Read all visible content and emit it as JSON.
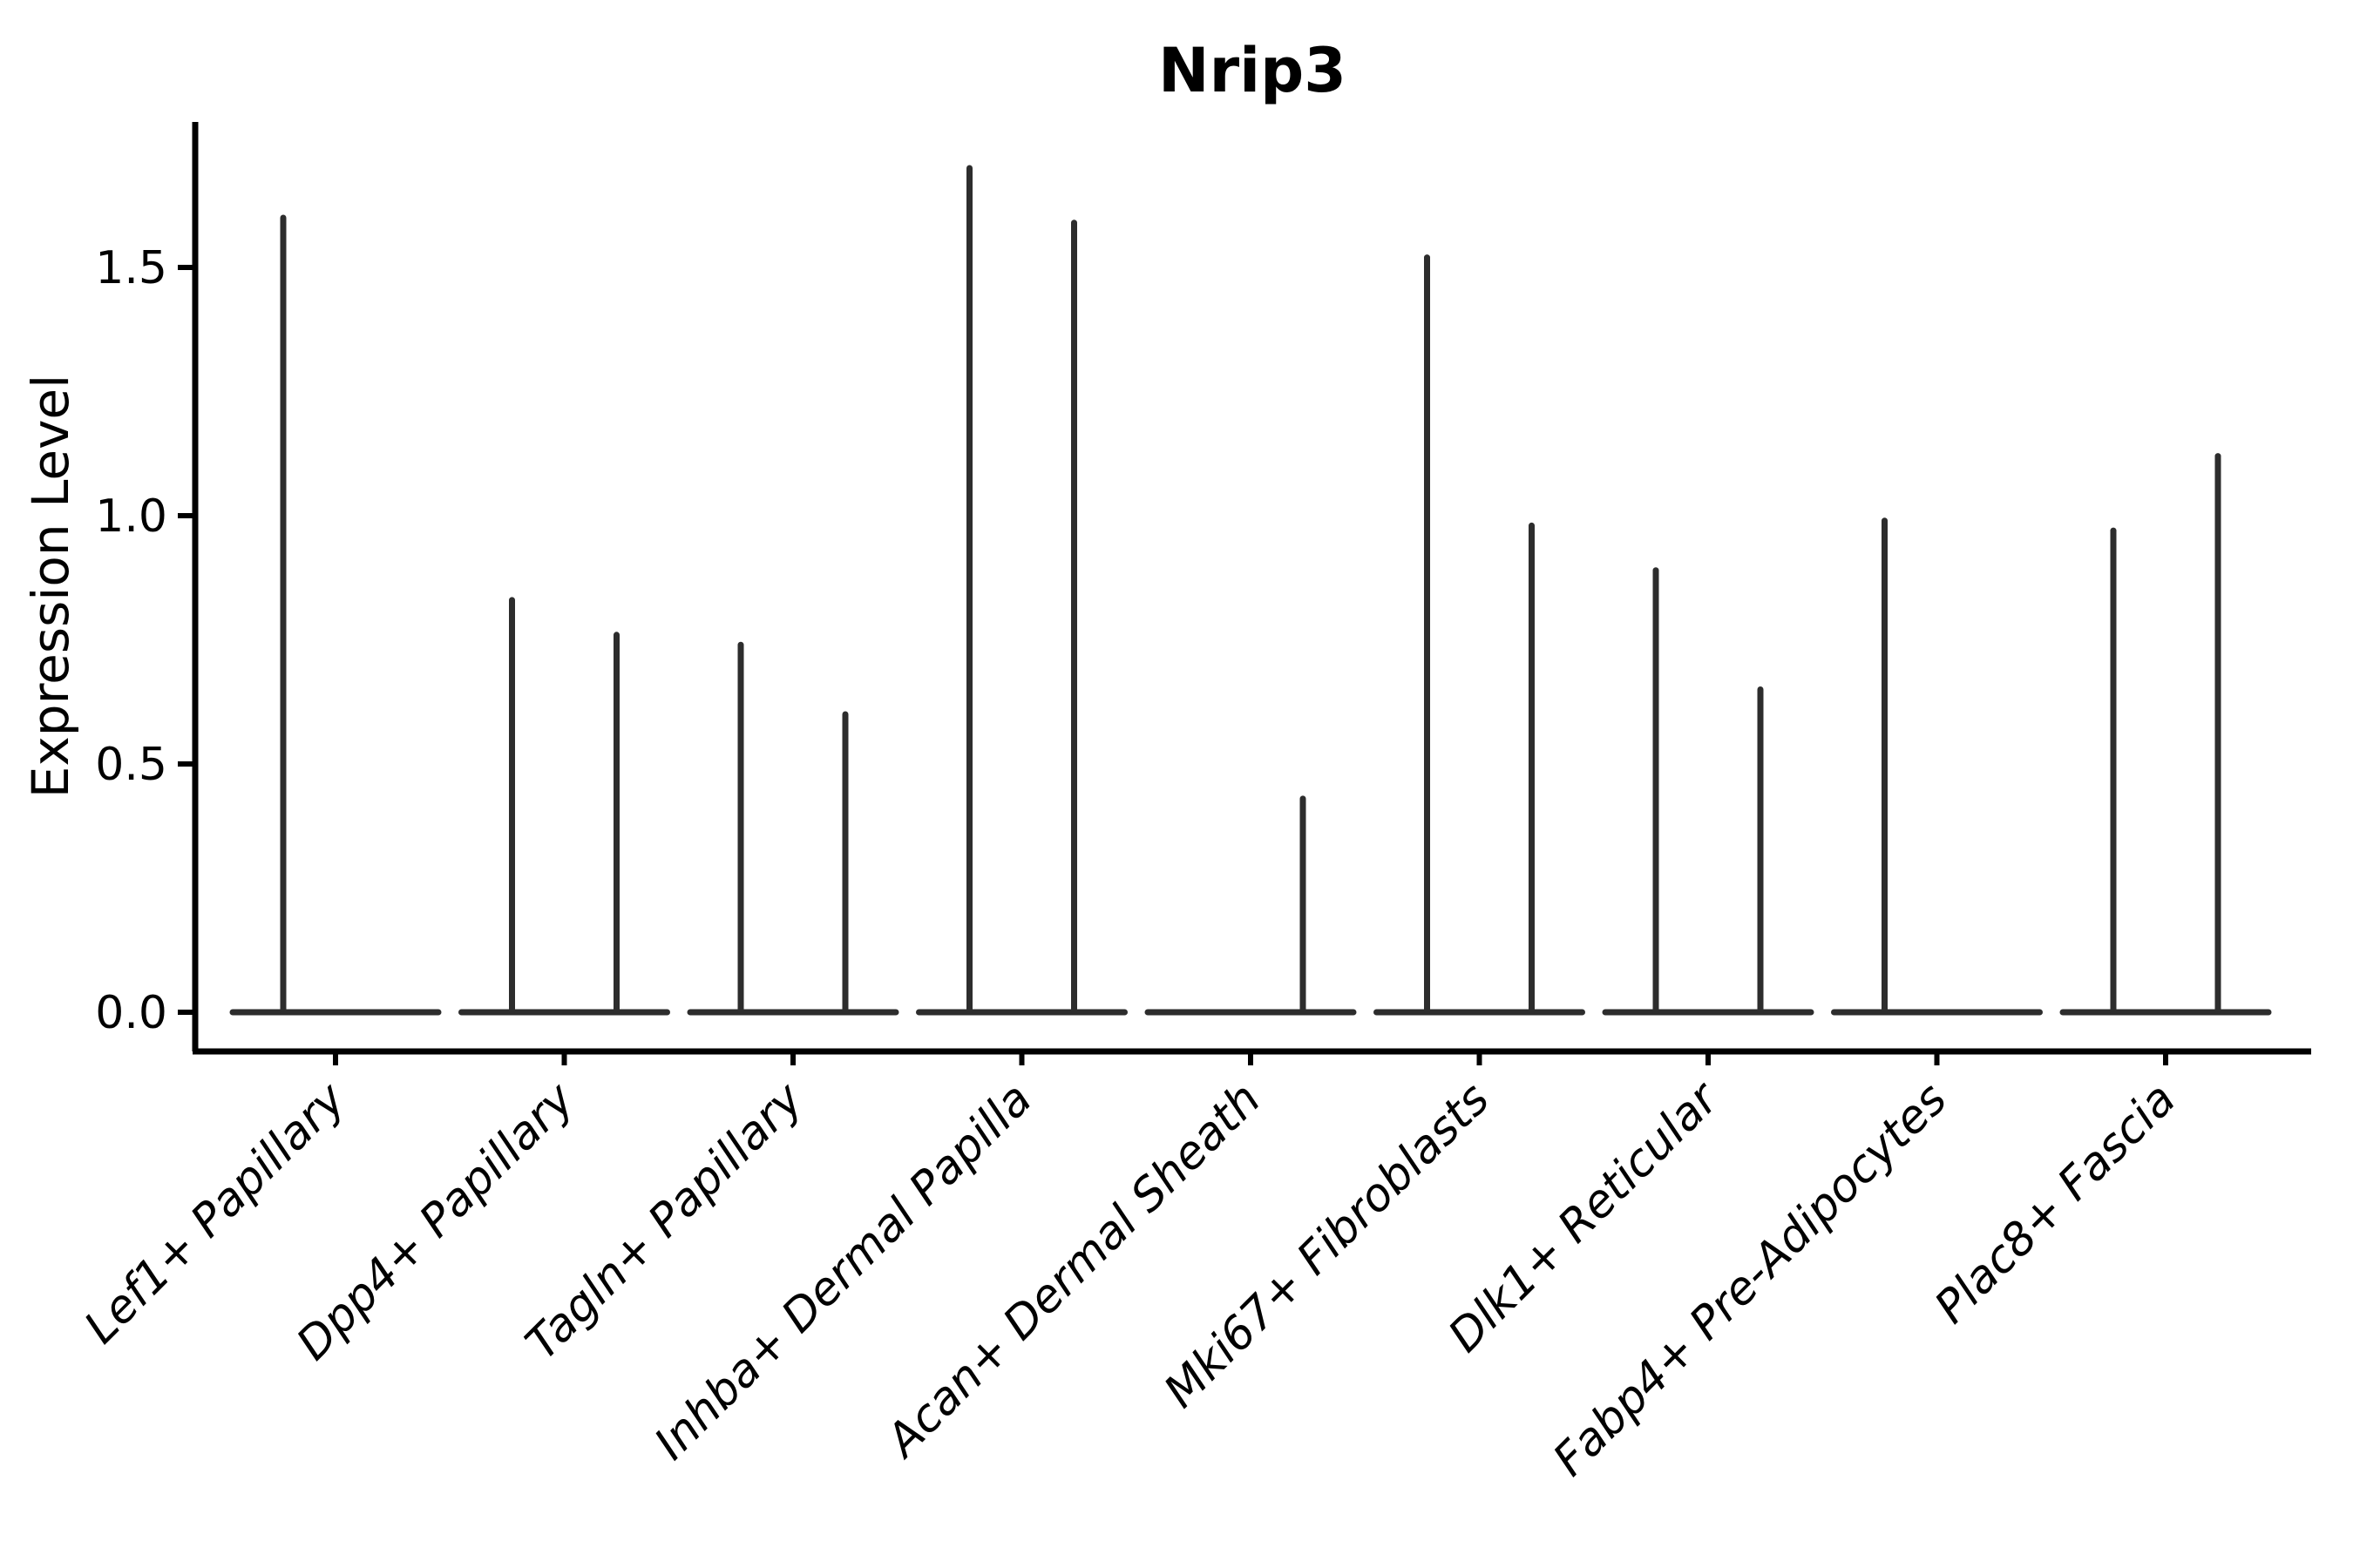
{
  "chart_data": {
    "type": "violin",
    "title": "Nrip3",
    "xlabel": "",
    "ylabel": "Expression Level",
    "yticks": [
      "0.0",
      "0.5",
      "1.0",
      "1.5"
    ],
    "ylim": [
      -0.08,
      1.87
    ],
    "grid": false,
    "legend": "none",
    "categories": [
      "Lef1+ Papillary",
      "Dpp4+ Papillary",
      "Tagln+ Papillary",
      "Inhba+ Dermal Papilla",
      "Acan+ Dermal Sheath",
      "Mki67+ Fibroblasts",
      "Dlk1+ Reticular",
      "Fabp4+ Pre-Adipocytes",
      "Plac8+ Fascia"
    ],
    "violin_style": "flat near-zero-density baseline at 0 with a thin vertical spike reaching the maximum expression value",
    "series": [
      {
        "name": "left-half-violin",
        "max_expression": [
          1.6,
          0.83,
          0.74,
          1.7,
          0,
          1.52,
          0.89,
          0.99,
          0.97
        ]
      },
      {
        "name": "right-half-violin",
        "max_expression": [
          0,
          0.76,
          0.6,
          1.59,
          0.43,
          0.98,
          0.65,
          0,
          1.12
        ]
      }
    ],
    "colors": {
      "background": "#ffffff",
      "axis": "#000000",
      "violin_stroke": "#2d2d2d",
      "text": "#000000"
    }
  }
}
